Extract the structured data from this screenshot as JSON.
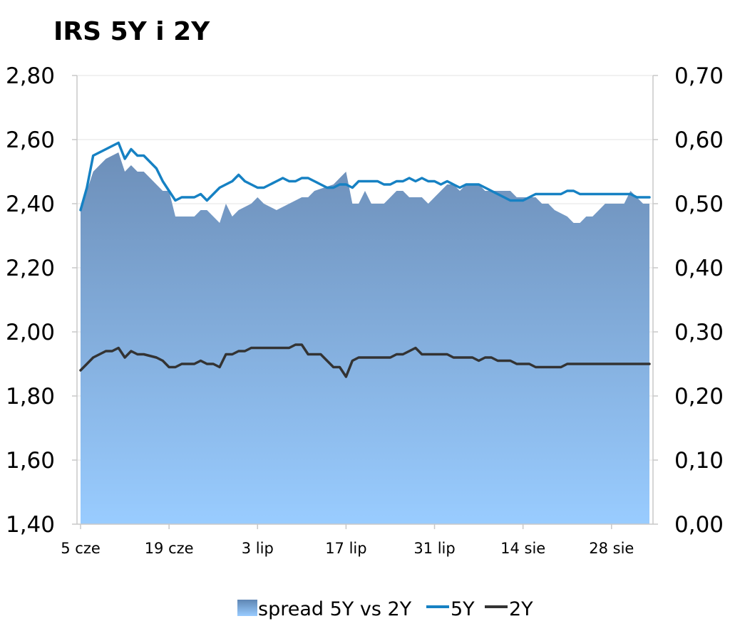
{
  "chart_data": {
    "type": "line",
    "title": "IRS 5Y i 2Y",
    "xlabel": "",
    "ylabel": "",
    "x_ticks": [
      "5 cze",
      "19 cze",
      "3 lip",
      "17 lip",
      "31 lip",
      "14 sie",
      "28 sie"
    ],
    "y_left": {
      "ylim": [
        1.4,
        2.8
      ],
      "ticks": [
        "1,40",
        "1,60",
        "1,80",
        "2,00",
        "2,20",
        "2,40",
        "2,60",
        "2,80"
      ]
    },
    "y_right": {
      "ylim": [
        0.0,
        0.7
      ],
      "ticks": [
        "0,00",
        "0,10",
        "0,20",
        "0,30",
        "0,40",
        "0,50",
        "0,60",
        "0,70"
      ]
    },
    "grid": true,
    "legend_position": "bottom",
    "x_range_days": [
      0,
      90
    ],
    "series": [
      {
        "name": "spread 5Y vs 2Y",
        "kind": "area",
        "axis": "right",
        "color": "#5b8fc4",
        "points": [
          [
            0,
            0.49
          ],
          [
            2,
            0.55
          ],
          [
            3,
            0.56
          ],
          [
            4,
            0.57
          ],
          [
            6,
            0.58
          ],
          [
            7,
            0.55
          ],
          [
            8,
            0.56
          ],
          [
            9,
            0.55
          ],
          [
            10,
            0.55
          ],
          [
            12,
            0.53
          ],
          [
            13,
            0.52
          ],
          [
            14,
            0.52
          ],
          [
            15,
            0.48
          ],
          [
            16,
            0.48
          ],
          [
            17,
            0.48
          ],
          [
            18,
            0.48
          ],
          [
            19,
            0.49
          ],
          [
            20,
            0.49
          ],
          [
            21,
            0.48
          ],
          [
            22,
            0.47
          ],
          [
            23,
            0.5
          ],
          [
            24,
            0.48
          ],
          [
            25,
            0.49
          ],
          [
            27,
            0.5
          ],
          [
            28,
            0.51
          ],
          [
            29,
            0.5
          ],
          [
            31,
            0.49
          ],
          [
            33,
            0.5
          ],
          [
            35,
            0.51
          ],
          [
            36,
            0.51
          ],
          [
            37,
            0.52
          ],
          [
            40,
            0.53
          ],
          [
            41,
            0.54
          ],
          [
            42,
            0.55
          ],
          [
            43,
            0.5
          ],
          [
            44,
            0.5
          ],
          [
            45,
            0.52
          ],
          [
            46,
            0.5
          ],
          [
            47,
            0.5
          ],
          [
            48,
            0.5
          ],
          [
            49,
            0.51
          ],
          [
            50,
            0.52
          ],
          [
            51,
            0.52
          ],
          [
            52,
            0.51
          ],
          [
            53,
            0.51
          ],
          [
            54,
            0.51
          ],
          [
            55,
            0.5
          ],
          [
            56,
            0.51
          ],
          [
            57,
            0.52
          ],
          [
            58,
            0.53
          ],
          [
            59,
            0.53
          ],
          [
            60,
            0.52
          ],
          [
            61,
            0.53
          ],
          [
            62,
            0.53
          ],
          [
            63,
            0.53
          ],
          [
            64,
            0.52
          ],
          [
            65,
            0.52
          ],
          [
            66,
            0.52
          ],
          [
            67,
            0.52
          ],
          [
            68,
            0.52
          ],
          [
            69,
            0.51
          ],
          [
            70,
            0.51
          ],
          [
            71,
            0.51
          ],
          [
            72,
            0.51
          ],
          [
            73,
            0.5
          ],
          [
            74,
            0.5
          ],
          [
            75,
            0.49
          ],
          [
            77,
            0.48
          ],
          [
            78,
            0.47
          ],
          [
            79,
            0.47
          ],
          [
            80,
            0.48
          ],
          [
            81,
            0.48
          ],
          [
            82,
            0.49
          ],
          [
            83,
            0.5
          ],
          [
            84,
            0.5
          ],
          [
            85,
            0.5
          ],
          [
            86,
            0.5
          ],
          [
            87,
            0.52
          ],
          [
            88,
            0.51
          ],
          [
            89,
            0.5
          ],
          [
            90,
            0.5
          ]
        ]
      },
      {
        "name": "5Y",
        "kind": "line",
        "axis": "left",
        "color": "#1681c3",
        "points": [
          [
            0,
            2.38
          ],
          [
            1,
            2.45
          ],
          [
            2,
            2.55
          ],
          [
            3,
            2.56
          ],
          [
            4,
            2.57
          ],
          [
            5,
            2.58
          ],
          [
            6,
            2.59
          ],
          [
            7,
            2.54
          ],
          [
            8,
            2.57
          ],
          [
            9,
            2.55
          ],
          [
            10,
            2.55
          ],
          [
            12,
            2.51
          ],
          [
            13,
            2.47
          ],
          [
            14,
            2.44
          ],
          [
            15,
            2.41
          ],
          [
            16,
            2.42
          ],
          [
            17,
            2.42
          ],
          [
            18,
            2.42
          ],
          [
            19,
            2.43
          ],
          [
            20,
            2.41
          ],
          [
            21,
            2.43
          ],
          [
            22,
            2.45
          ],
          [
            23,
            2.46
          ],
          [
            24,
            2.47
          ],
          [
            25,
            2.49
          ],
          [
            26,
            2.47
          ],
          [
            27,
            2.46
          ],
          [
            28,
            2.45
          ],
          [
            29,
            2.45
          ],
          [
            30,
            2.46
          ],
          [
            31,
            2.47
          ],
          [
            32,
            2.48
          ],
          [
            33,
            2.47
          ],
          [
            34,
            2.47
          ],
          [
            35,
            2.48
          ],
          [
            36,
            2.48
          ],
          [
            37,
            2.47
          ],
          [
            38,
            2.46
          ],
          [
            39,
            2.45
          ],
          [
            40,
            2.45
          ],
          [
            41,
            2.46
          ],
          [
            42,
            2.46
          ],
          [
            43,
            2.45
          ],
          [
            44,
            2.47
          ],
          [
            45,
            2.47
          ],
          [
            46,
            2.47
          ],
          [
            47,
            2.47
          ],
          [
            48,
            2.46
          ],
          [
            49,
            2.46
          ],
          [
            50,
            2.47
          ],
          [
            51,
            2.47
          ],
          [
            52,
            2.48
          ],
          [
            53,
            2.47
          ],
          [
            54,
            2.48
          ],
          [
            55,
            2.47
          ],
          [
            56,
            2.47
          ],
          [
            57,
            2.46
          ],
          [
            58,
            2.47
          ],
          [
            59,
            2.46
          ],
          [
            60,
            2.45
          ],
          [
            61,
            2.46
          ],
          [
            62,
            2.46
          ],
          [
            63,
            2.46
          ],
          [
            64,
            2.45
          ],
          [
            65,
            2.44
          ],
          [
            66,
            2.43
          ],
          [
            67,
            2.42
          ],
          [
            68,
            2.41
          ],
          [
            69,
            2.41
          ],
          [
            70,
            2.41
          ],
          [
            71,
            2.42
          ],
          [
            72,
            2.43
          ],
          [
            73,
            2.43
          ],
          [
            74,
            2.43
          ],
          [
            75,
            2.43
          ],
          [
            76,
            2.43
          ],
          [
            77,
            2.44
          ],
          [
            78,
            2.44
          ],
          [
            79,
            2.43
          ],
          [
            80,
            2.43
          ],
          [
            81,
            2.43
          ],
          [
            82,
            2.43
          ],
          [
            83,
            2.43
          ],
          [
            84,
            2.43
          ],
          [
            85,
            2.43
          ],
          [
            86,
            2.43
          ],
          [
            87,
            2.43
          ],
          [
            88,
            2.42
          ],
          [
            89,
            2.42
          ],
          [
            90,
            2.42
          ]
        ]
      },
      {
        "name": "2Y",
        "kind": "line",
        "axis": "left",
        "color": "#333333",
        "points": [
          [
            0,
            1.88
          ],
          [
            1,
            1.9
          ],
          [
            2,
            1.92
          ],
          [
            3,
            1.93
          ],
          [
            4,
            1.94
          ],
          [
            5,
            1.94
          ],
          [
            6,
            1.95
          ],
          [
            7,
            1.92
          ],
          [
            8,
            1.94
          ],
          [
            9,
            1.93
          ],
          [
            10,
            1.93
          ],
          [
            12,
            1.92
          ],
          [
            13,
            1.91
          ],
          [
            14,
            1.89
          ],
          [
            15,
            1.89
          ],
          [
            16,
            1.9
          ],
          [
            17,
            1.9
          ],
          [
            18,
            1.9
          ],
          [
            19,
            1.91
          ],
          [
            20,
            1.9
          ],
          [
            21,
            1.9
          ],
          [
            22,
            1.89
          ],
          [
            23,
            1.93
          ],
          [
            24,
            1.93
          ],
          [
            25,
            1.94
          ],
          [
            26,
            1.94
          ],
          [
            27,
            1.95
          ],
          [
            28,
            1.95
          ],
          [
            29,
            1.95
          ],
          [
            30,
            1.95
          ],
          [
            31,
            1.95
          ],
          [
            32,
            1.95
          ],
          [
            33,
            1.95
          ],
          [
            34,
            1.96
          ],
          [
            35,
            1.96
          ],
          [
            36,
            1.93
          ],
          [
            37,
            1.93
          ],
          [
            38,
            1.93
          ],
          [
            39,
            1.91
          ],
          [
            40,
            1.89
          ],
          [
            41,
            1.89
          ],
          [
            42,
            1.86
          ],
          [
            43,
            1.91
          ],
          [
            44,
            1.92
          ],
          [
            45,
            1.92
          ],
          [
            46,
            1.92
          ],
          [
            47,
            1.92
          ],
          [
            48,
            1.92
          ],
          [
            49,
            1.92
          ],
          [
            50,
            1.93
          ],
          [
            51,
            1.93
          ],
          [
            52,
            1.94
          ],
          [
            53,
            1.95
          ],
          [
            54,
            1.93
          ],
          [
            55,
            1.93
          ],
          [
            56,
            1.93
          ],
          [
            57,
            1.93
          ],
          [
            58,
            1.93
          ],
          [
            59,
            1.92
          ],
          [
            60,
            1.92
          ],
          [
            61,
            1.92
          ],
          [
            62,
            1.92
          ],
          [
            63,
            1.91
          ],
          [
            64,
            1.92
          ],
          [
            65,
            1.92
          ],
          [
            66,
            1.91
          ],
          [
            67,
            1.91
          ],
          [
            68,
            1.91
          ],
          [
            69,
            1.9
          ],
          [
            70,
            1.9
          ],
          [
            71,
            1.9
          ],
          [
            72,
            1.89
          ],
          [
            73,
            1.89
          ],
          [
            74,
            1.89
          ],
          [
            75,
            1.89
          ],
          [
            76,
            1.89
          ],
          [
            77,
            1.9
          ],
          [
            78,
            1.9
          ],
          [
            79,
            1.9
          ],
          [
            80,
            1.9
          ],
          [
            81,
            1.9
          ],
          [
            82,
            1.9
          ],
          [
            83,
            1.9
          ],
          [
            84,
            1.9
          ],
          [
            85,
            1.9
          ],
          [
            86,
            1.9
          ],
          [
            87,
            1.9
          ],
          [
            88,
            1.9
          ],
          [
            89,
            1.9
          ],
          [
            90,
            1.9
          ]
        ]
      }
    ]
  }
}
